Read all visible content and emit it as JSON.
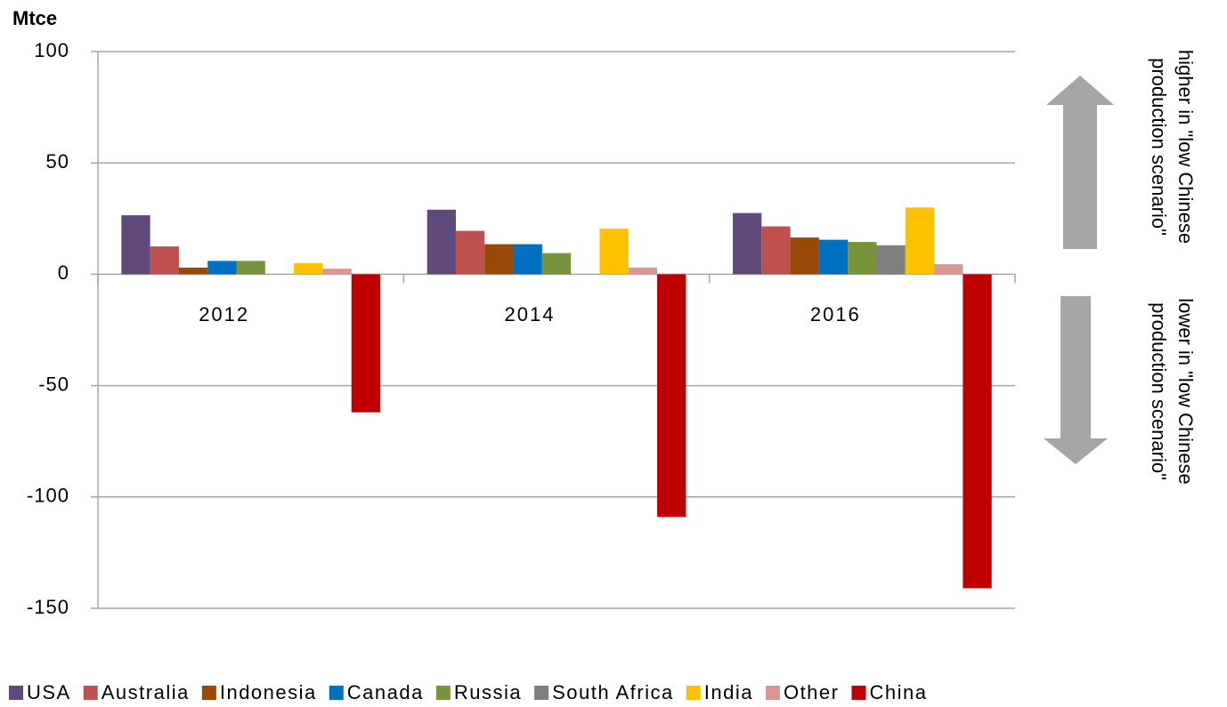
{
  "chart_data": {
    "type": "bar",
    "y_label": "Mtce",
    "categories": [
      "2012",
      "2014",
      "2016"
    ],
    "series": [
      {
        "name": "USA",
        "color": "#604a7b",
        "values": [
          26.5,
          29,
          27.5
        ]
      },
      {
        "name": "Australia",
        "color": "#c0504d",
        "values": [
          12.5,
          19.5,
          21.5
        ]
      },
      {
        "name": "Indonesia",
        "color": "#984807",
        "values": [
          3,
          13.5,
          16.5
        ]
      },
      {
        "name": "Canada",
        "color": "#0070c0",
        "values": [
          6,
          13.5,
          15.5
        ]
      },
      {
        "name": "Russia",
        "color": "#77933c",
        "values": [
          6,
          9.5,
          14.5
        ]
      },
      {
        "name": "South Africa",
        "color": "#7f7f7f",
        "values": [
          0,
          0,
          13
        ]
      },
      {
        "name": "India",
        "color": "#ffc000",
        "values": [
          5,
          20.5,
          30
        ]
      },
      {
        "name": "Other",
        "color": "#d99694",
        "values": [
          2.5,
          3,
          4.5
        ]
      },
      {
        "name": "China",
        "color": "#c00000",
        "values": [
          -62,
          -109,
          -141
        ]
      }
    ],
    "ylim": [
      -150,
      100
    ],
    "yticks": [
      -150,
      -100,
      -50,
      0,
      50,
      100
    ],
    "grid": true,
    "legend": "bottom",
    "annotations": [
      [
        "higher in \"low Chinese",
        "production scenario\""
      ],
      [
        "lower in \"low Chinese",
        "production scenario\""
      ]
    ]
  }
}
